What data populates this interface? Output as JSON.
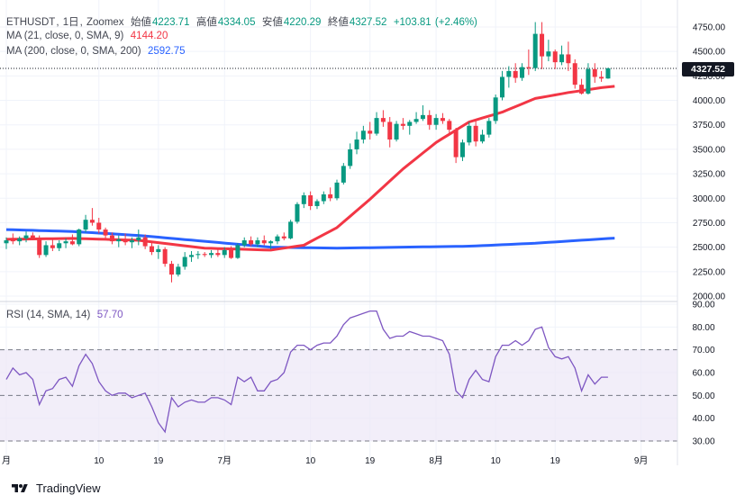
{
  "header": {
    "symbol": "ETHUSDT",
    "interval": "1日",
    "exchange": "Zoomex",
    "open_label": "始値",
    "open": "4223.71",
    "high_label": "高値",
    "high": "4334.05",
    "low_label": "安値",
    "low": "4220.29",
    "close_label": "終値",
    "close": "4327.52",
    "change": "+103.81",
    "change_pct": "(+2.46%)"
  },
  "indicators": {
    "ma21_label": "MA (21, close, 0, SMA, 9)",
    "ma21_value": "4144.20",
    "ma200_label": "MA (200, close, 0, SMA, 200)",
    "ma200_value": "2592.75",
    "rsi_label": "RSI (14, SMA, 14)",
    "rsi_value": "57.70"
  },
  "price_tag": "4327.52",
  "footer": {
    "brand": "TradingView"
  },
  "colors": {
    "up": "#089981",
    "down": "#f23645",
    "ma21": "#f23645",
    "ma200": "#2962ff",
    "rsi": "#7e57c2",
    "rsi_band": "#ede7f6"
  },
  "chart_data": [
    {
      "type": "candlestick",
      "title": "ETHUSDT, 1日, Zoomex",
      "price_axis_ticks": [
        "4750.00",
        "4500.00",
        "4250.00",
        "4000.00",
        "3750.00",
        "3500.00",
        "3250.00",
        "3000.00",
        "2750.00",
        "2500.00",
        "2250.00",
        "2000.00"
      ],
      "ylim": [
        1995,
        4830
      ],
      "x_tick_labels": [
        {
          "label": "月",
          "index": 0
        },
        {
          "label": "10",
          "index": 14
        },
        {
          "label": "19",
          "index": 23
        },
        {
          "label": "7月",
          "index": 33
        },
        {
          "label": "10",
          "index": 46
        },
        {
          "label": "19",
          "index": 55
        },
        {
          "label": "8月",
          "index": 65
        },
        {
          "label": "10",
          "index": 74
        },
        {
          "label": "19",
          "index": 83
        },
        {
          "label": "9月",
          "index": 96
        }
      ],
      "candles": [
        [
          2540,
          2600,
          2480,
          2570
        ],
        [
          2570,
          2640,
          2530,
          2560
        ],
        [
          2560,
          2610,
          2520,
          2590
        ],
        [
          2590,
          2660,
          2550,
          2620
        ],
        [
          2620,
          2650,
          2570,
          2590
        ],
        [
          2590,
          2620,
          2390,
          2420
        ],
        [
          2420,
          2560,
          2400,
          2520
        ],
        [
          2520,
          2580,
          2460,
          2490
        ],
        [
          2490,
          2570,
          2460,
          2540
        ],
        [
          2540,
          2590,
          2490,
          2560
        ],
        [
          2560,
          2630,
          2520,
          2530
        ],
        [
          2530,
          2690,
          2510,
          2680
        ],
        [
          2680,
          2830,
          2650,
          2780
        ],
        [
          2780,
          2900,
          2720,
          2750
        ],
        [
          2750,
          2800,
          2640,
          2680
        ],
        [
          2680,
          2700,
          2590,
          2620
        ],
        [
          2620,
          2650,
          2530,
          2560
        ],
        [
          2560,
          2620,
          2500,
          2580
        ],
        [
          2580,
          2640,
          2520,
          2550
        ],
        [
          2550,
          2600,
          2490,
          2570
        ],
        [
          2570,
          2680,
          2520,
          2600
        ],
        [
          2600,
          2630,
          2480,
          2510
        ],
        [
          2510,
          2560,
          2420,
          2450
        ],
        [
          2450,
          2520,
          2380,
          2480
        ],
        [
          2480,
          2500,
          2300,
          2330
        ],
        [
          2330,
          2360,
          2140,
          2220
        ],
        [
          2220,
          2330,
          2200,
          2300
        ],
        [
          2300,
          2450,
          2270,
          2400
        ],
        [
          2400,
          2460,
          2350,
          2420
        ],
        [
          2420,
          2460,
          2380,
          2430
        ],
        [
          2430,
          2450,
          2400,
          2420
        ],
        [
          2420,
          2470,
          2390,
          2440
        ],
        [
          2440,
          2480,
          2400,
          2420
        ],
        [
          2420,
          2500,
          2390,
          2470
        ],
        [
          2470,
          2510,
          2380,
          2390
        ],
        [
          2390,
          2540,
          2380,
          2520
        ],
        [
          2520,
          2600,
          2500,
          2570
        ],
        [
          2570,
          2610,
          2510,
          2530
        ],
        [
          2530,
          2600,
          2500,
          2570
        ],
        [
          2570,
          2620,
          2520,
          2540
        ],
        [
          2540,
          2570,
          2480,
          2560
        ],
        [
          2560,
          2630,
          2530,
          2610
        ],
        [
          2610,
          2650,
          2570,
          2590
        ],
        [
          2590,
          2780,
          2580,
          2760
        ],
        [
          2760,
          2960,
          2740,
          2940
        ],
        [
          2940,
          3060,
          2900,
          3030
        ],
        [
          3030,
          3070,
          2880,
          2920
        ],
        [
          2920,
          2990,
          2890,
          2970
        ],
        [
          2970,
          3070,
          2940,
          3040
        ],
        [
          3040,
          3110,
          2970,
          3000
        ],
        [
          3000,
          3190,
          2980,
          3160
        ],
        [
          3160,
          3360,
          3140,
          3330
        ],
        [
          3330,
          3560,
          3300,
          3500
        ],
        [
          3500,
          3680,
          3450,
          3600
        ],
        [
          3600,
          3740,
          3560,
          3690
        ],
        [
          3690,
          3780,
          3600,
          3660
        ],
        [
          3660,
          3880,
          3640,
          3820
        ],
        [
          3820,
          3900,
          3730,
          3780
        ],
        [
          3780,
          3830,
          3520,
          3600
        ],
        [
          3600,
          3790,
          3580,
          3760
        ],
        [
          3760,
          3820,
          3700,
          3740
        ],
        [
          3740,
          3800,
          3650,
          3780
        ],
        [
          3780,
          3880,
          3760,
          3810
        ],
        [
          3810,
          3950,
          3790,
          3850
        ],
        [
          3850,
          3900,
          3700,
          3750
        ],
        [
          3750,
          3860,
          3700,
          3820
        ],
        [
          3820,
          3870,
          3760,
          3790
        ],
        [
          3790,
          3810,
          3660,
          3700
        ],
        [
          3700,
          3720,
          3360,
          3420
        ],
        [
          3420,
          3600,
          3380,
          3570
        ],
        [
          3570,
          3780,
          3540,
          3740
        ],
        [
          3740,
          3790,
          3530,
          3580
        ],
        [
          3580,
          3700,
          3560,
          3650
        ],
        [
          3650,
          3820,
          3620,
          3790
        ],
        [
          3790,
          4060,
          3760,
          4030
        ],
        [
          4030,
          4300,
          4000,
          4240
        ],
        [
          4240,
          4350,
          4130,
          4300
        ],
        [
          4300,
          4380,
          4180,
          4230
        ],
        [
          4230,
          4380,
          4200,
          4340
        ],
        [
          4340,
          4520,
          4260,
          4330
        ],
        [
          4330,
          4800,
          4300,
          4680
        ],
        [
          4680,
          4800,
          4320,
          4450
        ],
        [
          4450,
          4620,
          4400,
          4500
        ],
        [
          4500,
          4520,
          4320,
          4390
        ],
        [
          4390,
          4560,
          4360,
          4470
        ],
        [
          4470,
          4600,
          4300,
          4380
        ],
        [
          4380,
          4420,
          4120,
          4160
        ],
        [
          4160,
          4220,
          4060,
          4070
        ],
        [
          4070,
          4380,
          4060,
          4320
        ],
        [
          4320,
          4380,
          4180,
          4240
        ],
        [
          4240,
          4300,
          4190,
          4223.71
        ],
        [
          4223.71,
          4334.05,
          4220.29,
          4327.52
        ]
      ],
      "series": [
        {
          "name": "MA (21, close, 0, SMA, 9)",
          "values_by_index": [
            [
              0,
              2580
            ],
            [
              10,
              2590
            ],
            [
              20,
              2570
            ],
            [
              30,
              2490
            ],
            [
              40,
              2470
            ],
            [
              45,
              2520
            ],
            [
              50,
              2700
            ],
            [
              55,
              2990
            ],
            [
              60,
              3300
            ],
            [
              65,
              3570
            ],
            [
              70,
              3780
            ],
            [
              75,
              3880
            ],
            [
              80,
              4020
            ],
            [
              85,
              4080
            ],
            [
              90,
              4130
            ],
            [
              92,
              4144.2
            ]
          ]
        },
        {
          "name": "MA (200, close, 0, SMA, 200)",
          "values_by_index": [
            [
              0,
              2680
            ],
            [
              10,
              2660
            ],
            [
              20,
              2620
            ],
            [
              30,
              2560
            ],
            [
              40,
              2500
            ],
            [
              50,
              2490
            ],
            [
              60,
              2500
            ],
            [
              70,
              2510
            ],
            [
              80,
              2540
            ],
            [
              92,
              2592.75
            ]
          ]
        }
      ]
    },
    {
      "type": "line",
      "title": "RSI (14, SMA, 14)",
      "ylim": [
        26,
        92
      ],
      "y_ticks": [
        "90.00",
        "80.00",
        "70.00",
        "60.00",
        "50.00",
        "40.00",
        "30.00"
      ],
      "bands": [
        30,
        50,
        70
      ],
      "series": [
        {
          "name": "RSI",
          "values": [
            57,
            62,
            59,
            60,
            57,
            46,
            52,
            53,
            57,
            58,
            54,
            63,
            68,
            64,
            56,
            52,
            50,
            51,
            51,
            49,
            50,
            51,
            45,
            38,
            34,
            49,
            45,
            47,
            48,
            47,
            47,
            49,
            49,
            48,
            46,
            58,
            56,
            58,
            52,
            52,
            56,
            57,
            60,
            69,
            72,
            72,
            70,
            72,
            73,
            73,
            76,
            81,
            84,
            85,
            86,
            87,
            87,
            79,
            75,
            76,
            76,
            78,
            77,
            76,
            76,
            75,
            74,
            68,
            52,
            49,
            57,
            61,
            57,
            56,
            67,
            72,
            72,
            74,
            72,
            74,
            79,
            80,
            71,
            67,
            66,
            67,
            62,
            52,
            59,
            55,
            58,
            58
          ]
        }
      ]
    }
  ]
}
